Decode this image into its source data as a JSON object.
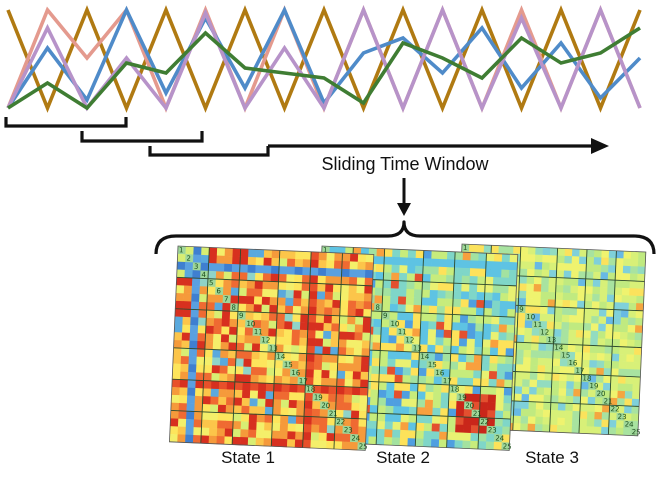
{
  "diagram": {
    "window_label": "Sliding Time Window",
    "series": [
      {
        "color": "#b07a12",
        "values": [
          0.98,
          0.0,
          0.98,
          0.0,
          0.98,
          0.0,
          0.98,
          0.0,
          0.98,
          0.0,
          0.98,
          0.0,
          0.98,
          0.0,
          0.98,
          0.0,
          0.98
        ]
      },
      {
        "color": "#e49a8e",
        "values": [
          0.0,
          0.98,
          0.5,
          0.98,
          0.0,
          0.98,
          0.0,
          0.98,
          0.0,
          0.98,
          0.0,
          0.98,
          0.0,
          0.98,
          0.0,
          0.98,
          0.0
        ]
      },
      {
        "color": "#4f8bc9",
        "values": [
          0.0,
          0.6,
          0.08,
          0.98,
          0.15,
          0.9,
          0.2,
          0.98,
          0.05,
          0.55,
          0.7,
          0.35,
          0.8,
          0.2,
          0.65,
          0.1,
          0.5
        ]
      },
      {
        "color": "#b793c9",
        "values": [
          0.0,
          0.8,
          0.0,
          0.5,
          0.0,
          0.95,
          0.0,
          0.6,
          0.0,
          0.98,
          0.0,
          0.98,
          0.0,
          0.9,
          0.0,
          0.98,
          0.0
        ]
      },
      {
        "color": "#3f7d33",
        "values": [
          0.0,
          0.25,
          0.0,
          0.45,
          0.35,
          0.75,
          0.4,
          0.35,
          0.3,
          0.05,
          0.65,
          0.5,
          0.3,
          0.7,
          0.45,
          0.55,
          0.8
        ]
      }
    ],
    "matrices": [
      {
        "label": "State 1",
        "palette": "hot",
        "seed": 7,
        "diag_numbers": [
          "1",
          "2",
          "3",
          "4",
          "5",
          "6",
          "7",
          "8",
          "9",
          "10",
          "11",
          "12",
          "13",
          "14",
          "15",
          "16",
          "17",
          "18",
          "19",
          "20",
          "21",
          "22",
          "23",
          "24",
          "25"
        ]
      },
      {
        "label": "State 2",
        "palette": "mid",
        "seed": 19,
        "diag_numbers": [
          "1",
          "2",
          "3",
          "4",
          "5",
          "6",
          "7",
          "8",
          "9",
          "10",
          "11",
          "12",
          "13",
          "14",
          "15",
          "16",
          "17",
          "18",
          "19",
          "20",
          "21",
          "22",
          "23",
          "24",
          "25"
        ]
      },
      {
        "label": "State 3",
        "palette": "cool",
        "seed": 31,
        "diag_numbers": [
          "1",
          "2",
          "3",
          "4",
          "5",
          "6",
          "7",
          "8",
          "9",
          "10",
          "11",
          "12",
          "13",
          "14",
          "15",
          "16",
          "17",
          "18",
          "19",
          "20",
          "21",
          "22",
          "23",
          "24",
          "25"
        ]
      }
    ]
  }
}
